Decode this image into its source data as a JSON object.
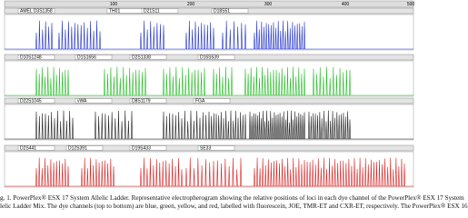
{
  "figure": {
    "scale": [
      "100",
      "200",
      "300",
      "400",
      "500"
    ],
    "panels": [
      {
        "loci": [
          "AMEL D3S1358",
          "TH01",
          "D21S11",
          "D18S51"
        ]
      },
      {
        "loci": [
          "D10S1248",
          "D1S1656",
          "D2S1338",
          "D16S539"
        ]
      },
      {
        "loci": [
          "D22S1045",
          "vWA",
          "D8S1179",
          "FGA"
        ]
      },
      {
        "loci": [
          "D2S441",
          "D12S391",
          "D19S433",
          "SE33"
        ]
      }
    ],
    "caption": [
      "g. 1. PowerPlex® ESX 17 System Allelic Ladder. Representative electropherogram showing the relative positions of loci in each dye channel of the PowerPlex® ESX 17 System",
      "lelic Ladder Mix. The dye channels (top to bottom) are blue, green, yellow, and red, labelled with fluorescein, JOE, TMR-ET and CXR-ET, respectively. The PowerPlex® ESX 16"
    ]
  }
}
